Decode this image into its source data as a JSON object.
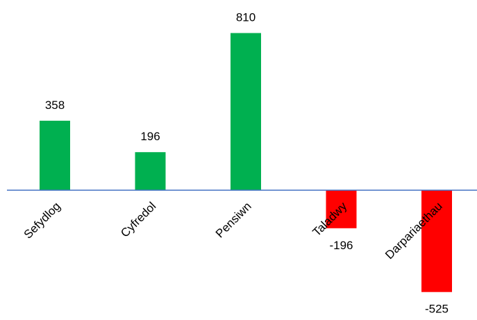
{
  "chart_data": {
    "type": "bar",
    "categories": [
      "Sefydlog",
      "Cyfredol",
      "Pensiwn",
      "Taladwy",
      "Darpariaethau"
    ],
    "values": [
      358,
      196,
      810,
      -196,
      -525
    ],
    "data_labels": [
      "358",
      "196",
      "810",
      "-196",
      "-525"
    ],
    "title": "",
    "xlabel": "",
    "ylabel": "",
    "ylim": [
      -600,
      900
    ],
    "grid": false,
    "legend": "none",
    "colors": {
      "positive": "#00B050",
      "negative": "#FF0000",
      "axis": "#4472C4"
    }
  }
}
